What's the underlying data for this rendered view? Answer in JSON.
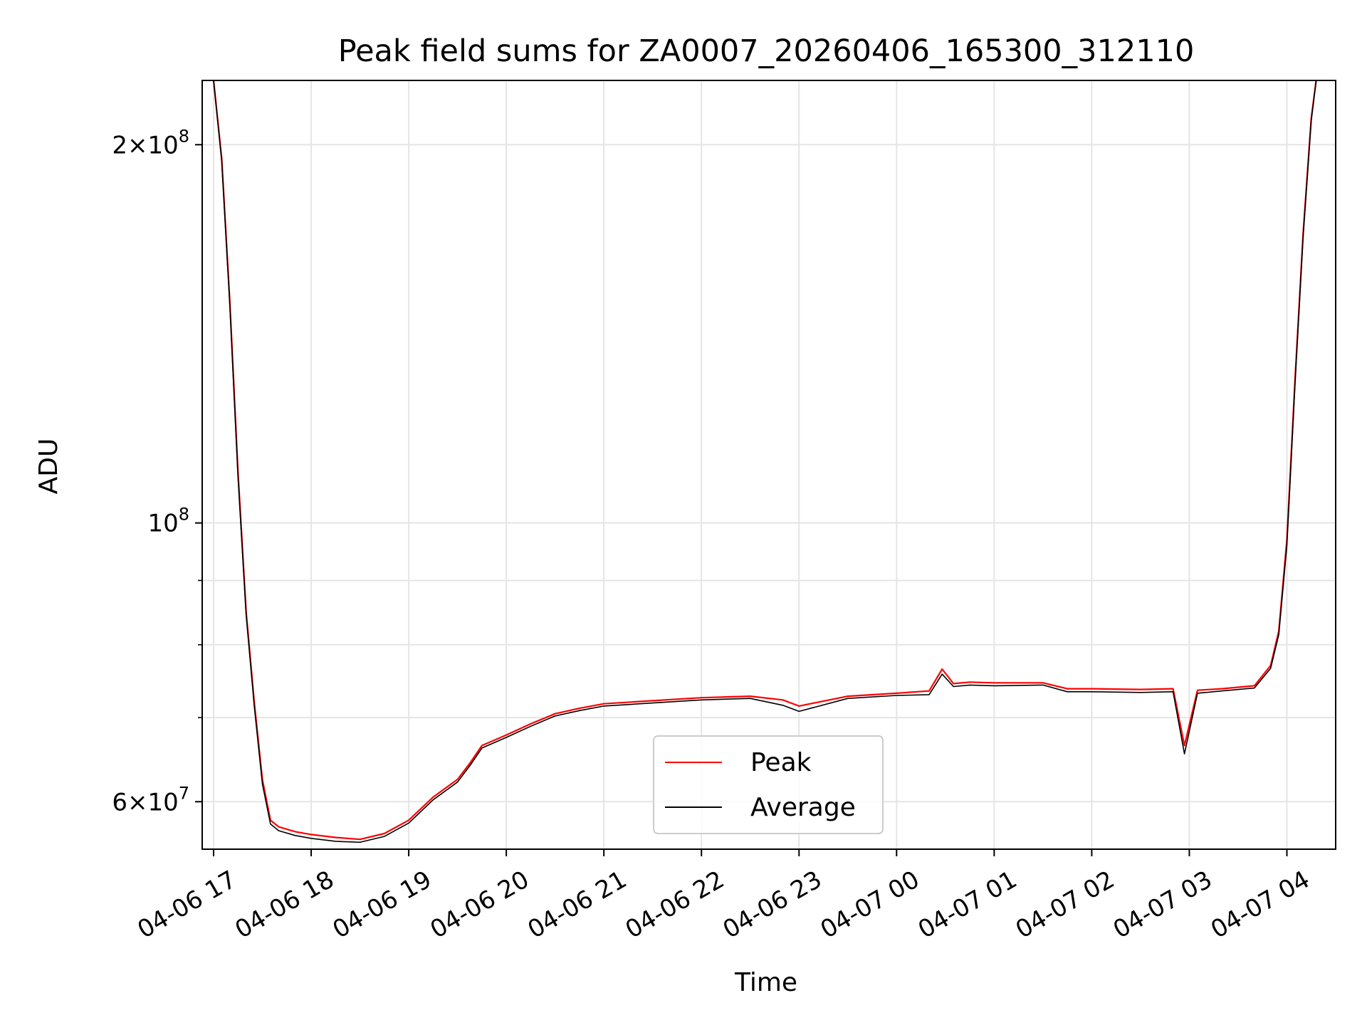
{
  "chart_data": {
    "type": "line",
    "title": "Peak field sums for ZA0007_20260406_165300_312110",
    "xlabel": "Time",
    "ylabel": "ADU",
    "x_scale": "time",
    "y_scale": "log",
    "xlim": [
      "2026-04-06 16:53",
      "2026-04-07 04:30"
    ],
    "ylim": [
      55000000,
      225000000
    ],
    "x_ticks": [
      "2026-04-06 17:00",
      "2026-04-06 18:00",
      "2026-04-06 19:00",
      "2026-04-06 20:00",
      "2026-04-06 21:00",
      "2026-04-06 22:00",
      "2026-04-06 23:00",
      "2026-04-07 00:00",
      "2026-04-07 01:00",
      "2026-04-07 02:00",
      "2026-04-07 03:00",
      "2026-04-07 04:00"
    ],
    "x_tick_labels": [
      "04-06 17",
      "04-06 18",
      "04-06 19",
      "04-06 20",
      "04-06 21",
      "04-06 22",
      "04-06 23",
      "04-07 00",
      "04-07 01",
      "04-07 02",
      "04-07 03",
      "04-07 04"
    ],
    "y_major_ticks": [
      60000000,
      100000000,
      200000000
    ],
    "y_major_tick_labels": [
      {
        "mantissa": "6",
        "exp": "7"
      },
      {
        "mantissa": "",
        "exp": "8"
      },
      {
        "mantissa": "2",
        "exp": "8"
      }
    ],
    "y_minor_ticks": [
      70000000,
      80000000,
      90000000
    ],
    "grid": true,
    "legend_position": "lower-center",
    "series": [
      {
        "name": "Peak",
        "color": "#ff0000",
        "x": [
          "2026-04-06 17:00",
          "2026-04-06 17:05",
          "2026-04-06 17:10",
          "2026-04-06 17:15",
          "2026-04-06 17:20",
          "2026-04-06 17:25",
          "2026-04-06 17:30",
          "2026-04-06 17:35",
          "2026-04-06 17:40",
          "2026-04-06 17:50",
          "2026-04-06 18:00",
          "2026-04-06 18:15",
          "2026-04-06 18:30",
          "2026-04-06 18:45",
          "2026-04-06 19:00",
          "2026-04-06 19:15",
          "2026-04-06 19:30",
          "2026-04-06 19:38",
          "2026-04-06 19:45",
          "2026-04-06 20:00",
          "2026-04-06 20:15",
          "2026-04-06 20:30",
          "2026-04-06 20:45",
          "2026-04-06 21:00",
          "2026-04-06 21:30",
          "2026-04-06 22:00",
          "2026-04-06 22:30",
          "2026-04-06 22:50",
          "2026-04-06 23:00",
          "2026-04-06 23:30",
          "2026-04-07 00:00",
          "2026-04-07 00:20",
          "2026-04-07 00:28",
          "2026-04-07 00:35",
          "2026-04-07 00:45",
          "2026-04-07 01:00",
          "2026-04-07 01:30",
          "2026-04-07 01:45",
          "2026-04-07 02:00",
          "2026-04-07 02:30",
          "2026-04-07 02:50",
          "2026-04-07 02:57",
          "2026-04-07 03:05",
          "2026-04-07 03:20",
          "2026-04-07 03:40",
          "2026-04-07 03:50",
          "2026-04-07 03:55",
          "2026-04-07 04:00",
          "2026-04-07 04:05",
          "2026-04-07 04:10",
          "2026-04-07 04:15",
          "2026-04-07 04:18"
        ],
        "y": [
          225000000,
          195000000,
          150000000,
          110000000,
          85000000,
          72000000,
          62500000,
          58000000,
          57300000,
          56800000,
          56500000,
          56200000,
          56000000,
          56600000,
          58000000,
          60500000,
          62500000,
          64500000,
          66500000,
          67800000,
          69200000,
          70500000,
          71200000,
          71800000,
          72200000,
          72600000,
          72800000,
          72300000,
          71500000,
          72800000,
          73200000,
          73500000,
          76500000,
          74500000,
          74700000,
          74600000,
          74600000,
          73800000,
          73800000,
          73700000,
          73800000,
          66500000,
          73600000,
          73800000,
          74200000,
          77000000,
          82000000,
          97000000,
          130000000,
          170000000,
          210000000,
          225000000
        ]
      },
      {
        "name": "Average",
        "color": "#000000",
        "x": [
          "2026-04-06 17:00",
          "2026-04-06 17:05",
          "2026-04-06 17:10",
          "2026-04-06 17:15",
          "2026-04-06 17:20",
          "2026-04-06 17:25",
          "2026-04-06 17:30",
          "2026-04-06 17:35",
          "2026-04-06 17:40",
          "2026-04-06 17:50",
          "2026-04-06 18:00",
          "2026-04-06 18:15",
          "2026-04-06 18:30",
          "2026-04-06 18:45",
          "2026-04-06 19:00",
          "2026-04-06 19:15",
          "2026-04-06 19:30",
          "2026-04-06 19:38",
          "2026-04-06 19:45",
          "2026-04-06 20:00",
          "2026-04-06 20:15",
          "2026-04-06 20:30",
          "2026-04-06 20:45",
          "2026-04-06 21:00",
          "2026-04-06 21:30",
          "2026-04-06 22:00",
          "2026-04-06 22:30",
          "2026-04-06 22:50",
          "2026-04-06 23:00",
          "2026-04-06 23:30",
          "2026-04-07 00:00",
          "2026-04-07 00:20",
          "2026-04-07 00:28",
          "2026-04-07 00:35",
          "2026-04-07 00:45",
          "2026-04-07 01:00",
          "2026-04-07 01:30",
          "2026-04-07 01:45",
          "2026-04-07 02:00",
          "2026-04-07 02:30",
          "2026-04-07 02:50",
          "2026-04-07 02:57",
          "2026-04-07 03:05",
          "2026-04-07 03:20",
          "2026-04-07 03:40",
          "2026-04-07 03:50",
          "2026-04-07 03:55",
          "2026-04-07 04:00",
          "2026-04-07 04:05",
          "2026-04-07 04:10",
          "2026-04-07 04:15",
          "2026-04-07 04:18"
        ],
        "y": [
          225000000,
          194000000,
          149000000,
          109000000,
          84500000,
          71500000,
          62000000,
          57600000,
          56900000,
          56400000,
          56100000,
          55800000,
          55700000,
          56300000,
          57700000,
          60200000,
          62200000,
          64200000,
          66200000,
          67500000,
          68900000,
          70200000,
          70900000,
          71500000,
          71900000,
          72300000,
          72500000,
          71600000,
          70800000,
          72500000,
          72900000,
          73000000,
          75800000,
          74100000,
          74300000,
          74200000,
          74300000,
          73400000,
          73400000,
          73300000,
          73400000,
          65500000,
          73200000,
          73500000,
          73900000,
          76600000,
          81500000,
          96000000,
          129000000,
          169000000,
          209000000,
          225000000
        ]
      }
    ]
  }
}
